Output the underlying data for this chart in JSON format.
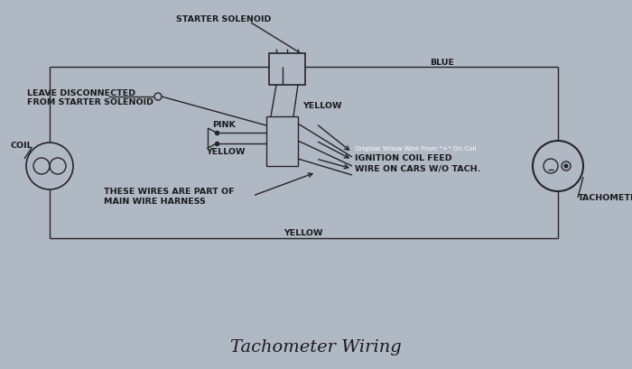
{
  "bg_color": "#b0b8c4",
  "line_color": "#252525",
  "text_color": "#1a1a1a",
  "title": "Tachometer Wiring",
  "title_fontsize": 14,
  "diagram_fontsize": 6.8,
  "small_fontsize": 5.2,
  "labels": {
    "starter_solenoid": "STARTER SOLENOID",
    "leave_disconnected": "LEAVE DISCONNECTED",
    "from_starter": "FROM STARTER SOLENOID",
    "coil": "COIL",
    "pink": "PINK",
    "yellow_top": "YELLOW",
    "yellow_wire": "YELLOW",
    "blue": "BLUE",
    "tachometer": "TACHOMETER",
    "ignition_feed1": "IGNITION COIL FEED",
    "ignition_feed2": "WIRE ON CARS W/O TACH.",
    "original_wire": "Original Yellow Wire From \"+\" On Coil",
    "main_harness1": "THESE WIRES ARE PART OF",
    "main_harness2": "MAIN WIRE HARNESS",
    "yellow_bottom": "YELLOW"
  }
}
